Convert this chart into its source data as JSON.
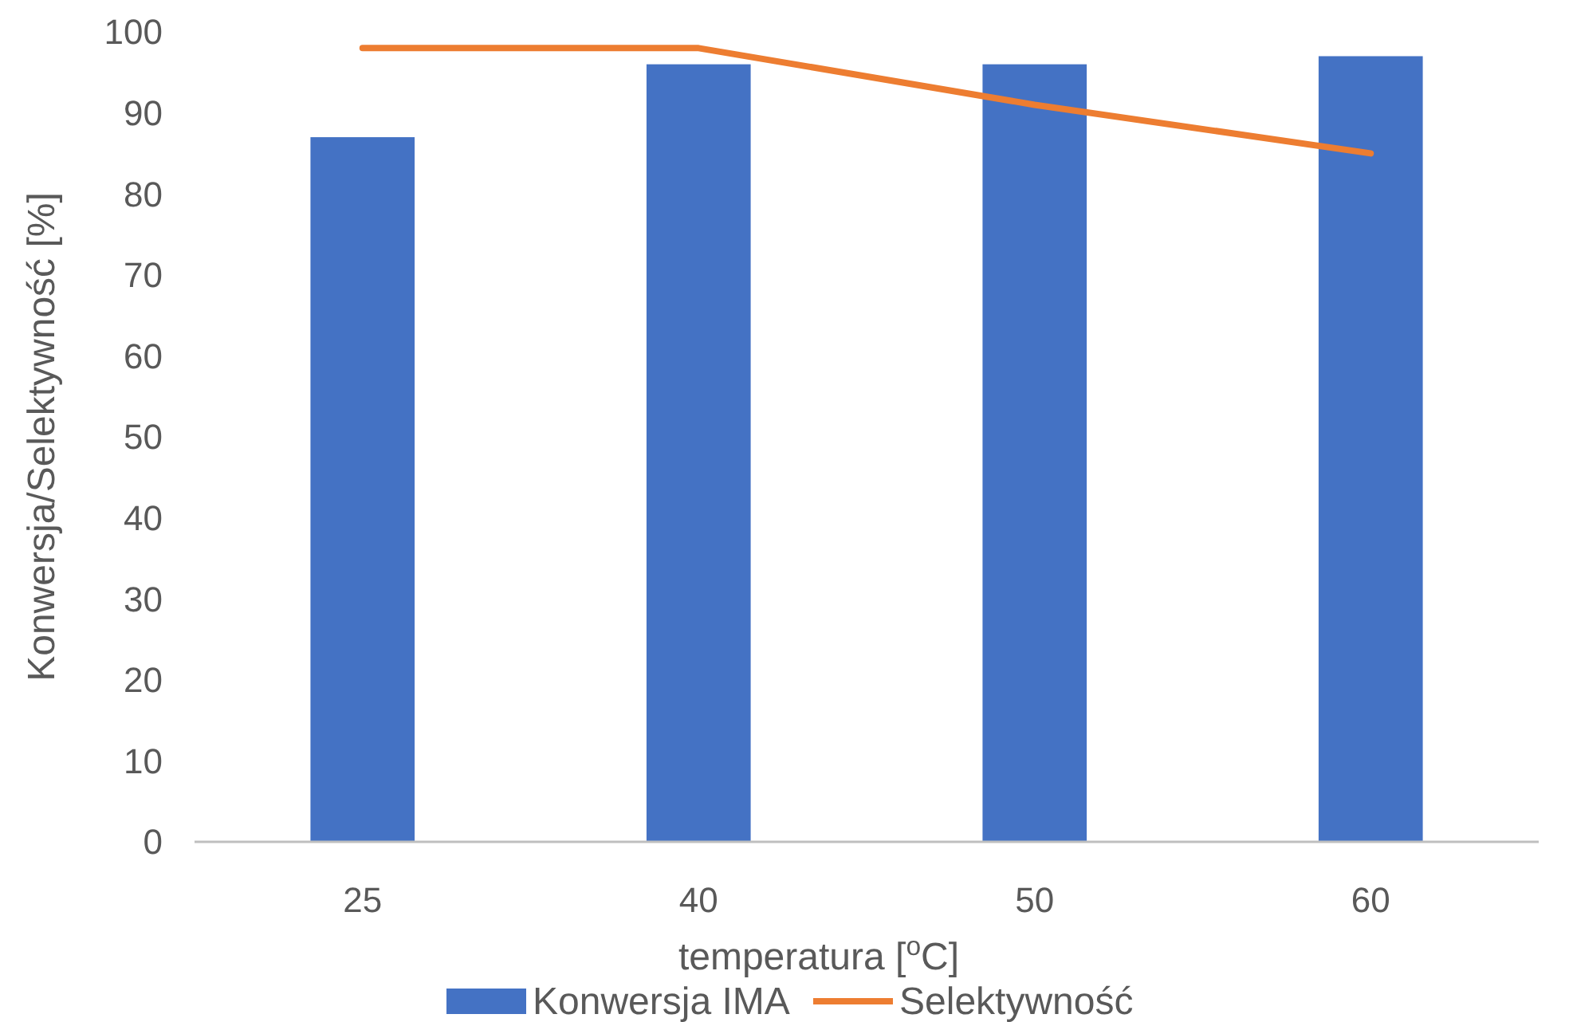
{
  "chart_data": {
    "type": "bar",
    "xlabel": "temperatura [$^{o}$C]",
    "ylabel": "Konwersja/Selektywność [%]",
    "categories": [
      "25",
      "40",
      "50",
      "60"
    ],
    "series": [
      {
        "name": "Konwersja IMA",
        "color": "#4472c4",
        "values": [
          87,
          96,
          96,
          97
        ]
      },
      {
        "name": "Selektywność",
        "type": "line",
        "color": "#ed7d31",
        "values": [
          98,
          98,
          91,
          85
        ]
      }
    ],
    "ylim": [
      0,
      100
    ],
    "yticks": [
      0,
      10,
      20,
      30,
      40,
      50,
      60,
      70,
      80,
      90,
      100
    ],
    "grid": false,
    "legend": "bottom",
    "marker": "none",
    "line_style": "solid"
  }
}
